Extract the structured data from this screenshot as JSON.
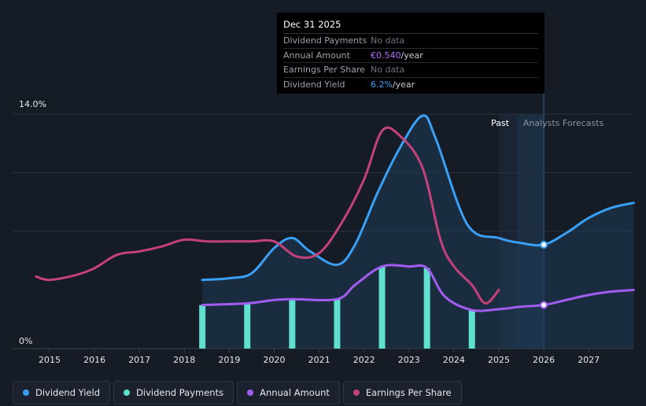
{
  "tooltip": {
    "title": "Dec 31 2025",
    "rows": {
      "dividend_payments": {
        "label": "Dividend Payments",
        "value": "No data"
      },
      "annual_amount": {
        "label": "Annual Amount",
        "value": "€0.540",
        "unit": "/year"
      },
      "earnings_per_share": {
        "label": "Earnings Per Share",
        "value": "No data"
      },
      "dividend_yield": {
        "label": "Dividend Yield",
        "value": "6.2%",
        "unit": "/year"
      }
    }
  },
  "legend": [
    {
      "label": "Dividend Yield",
      "color": "#3aa0f5"
    },
    {
      "label": "Dividend Payments",
      "color": "#5fe0d0"
    },
    {
      "label": "Annual Amount",
      "color": "#a35cf0"
    },
    {
      "label": "Earnings Per Share",
      "color": "#c4417a"
    }
  ],
  "chart_data": {
    "type": "line",
    "y_axis_labels": [
      "14.0%",
      "0%"
    ],
    "ylim": [
      0,
      14.0
    ],
    "x_ticks": [
      "2015",
      "2016",
      "2017",
      "2018",
      "2019",
      "2020",
      "2021",
      "2022",
      "2023",
      "2024",
      "2025",
      "2026",
      "2027"
    ],
    "xlim": [
      2014.3,
      2028.0
    ],
    "regions": {
      "past_label": "Past",
      "forecast_label": "Analysts Forecasts",
      "split": 2025.0,
      "forecast_start": 2025.4,
      "marker": 2026.0
    },
    "series": [
      {
        "name": "Dividend Yield",
        "color": "#3aa0f5",
        "filled": true,
        "points": [
          [
            2018.4,
            4.1
          ],
          [
            2019.0,
            4.2
          ],
          [
            2019.5,
            4.5
          ],
          [
            2020.0,
            6.0
          ],
          [
            2020.4,
            6.6
          ],
          [
            2020.8,
            5.8
          ],
          [
            2021.4,
            5.0
          ],
          [
            2021.8,
            6.2
          ],
          [
            2022.3,
            9.3
          ],
          [
            2022.8,
            12.0
          ],
          [
            2023.3,
            13.9
          ],
          [
            2023.6,
            12.5
          ],
          [
            2024.3,
            7.4
          ],
          [
            2025.0,
            6.6
          ],
          [
            2025.5,
            6.3
          ],
          [
            2026.0,
            6.2
          ],
          [
            2026.5,
            6.9
          ],
          [
            2027.0,
            7.8
          ],
          [
            2027.5,
            8.4
          ],
          [
            2028.0,
            8.7
          ]
        ]
      },
      {
        "name": "Earnings Per Share",
        "color": "#c4417a",
        "filled": false,
        "points": [
          [
            2014.7,
            4.3
          ],
          [
            2015.0,
            4.1
          ],
          [
            2015.6,
            4.4
          ],
          [
            2016.0,
            4.8
          ],
          [
            2016.5,
            5.6
          ],
          [
            2017.0,
            5.8
          ],
          [
            2017.5,
            6.1
          ],
          [
            2018.0,
            6.5
          ],
          [
            2018.5,
            6.4
          ],
          [
            2019.0,
            6.4
          ],
          [
            2019.5,
            6.4
          ],
          [
            2020.0,
            6.4
          ],
          [
            2020.5,
            5.5
          ],
          [
            2021.0,
            5.7
          ],
          [
            2021.5,
            7.5
          ],
          [
            2022.0,
            10.1
          ],
          [
            2022.4,
            13.0
          ],
          [
            2022.8,
            12.7
          ],
          [
            2023.3,
            10.8
          ],
          [
            2023.7,
            6.5
          ],
          [
            2024.0,
            4.9
          ],
          [
            2024.4,
            3.8
          ],
          [
            2024.7,
            2.7
          ],
          [
            2025.0,
            3.5
          ]
        ]
      },
      {
        "name": "Annual Amount",
        "color": "#a35cf0",
        "filled": false,
        "points": [
          [
            2018.4,
            2.6
          ],
          [
            2019.4,
            2.7
          ],
          [
            2020.0,
            2.9
          ],
          [
            2020.4,
            2.95
          ],
          [
            2021.4,
            2.95
          ],
          [
            2021.8,
            3.8
          ],
          [
            2022.4,
            4.9
          ],
          [
            2023.0,
            4.9
          ],
          [
            2023.4,
            4.8
          ],
          [
            2023.8,
            3.1
          ],
          [
            2024.4,
            2.3
          ],
          [
            2025.0,
            2.35
          ],
          [
            2025.5,
            2.5
          ],
          [
            2026.0,
            2.6
          ],
          [
            2026.5,
            2.9
          ],
          [
            2027.0,
            3.2
          ],
          [
            2027.5,
            3.4
          ],
          [
            2028.0,
            3.5
          ]
        ]
      }
    ],
    "bars": {
      "name": "Dividend Payments",
      "color": "#5fe0d0",
      "points": [
        [
          2018.4,
          2.6
        ],
        [
          2019.4,
          2.7
        ],
        [
          2020.4,
          2.95
        ],
        [
          2021.4,
          2.95
        ],
        [
          2022.4,
          4.9
        ],
        [
          2023.4,
          4.8
        ],
        [
          2024.4,
          2.3
        ]
      ]
    },
    "markers": [
      {
        "series": "Dividend Yield",
        "x": 2026.0,
        "y": 6.2
      },
      {
        "series": "Annual Amount",
        "x": 2026.0,
        "y": 2.6
      }
    ]
  }
}
